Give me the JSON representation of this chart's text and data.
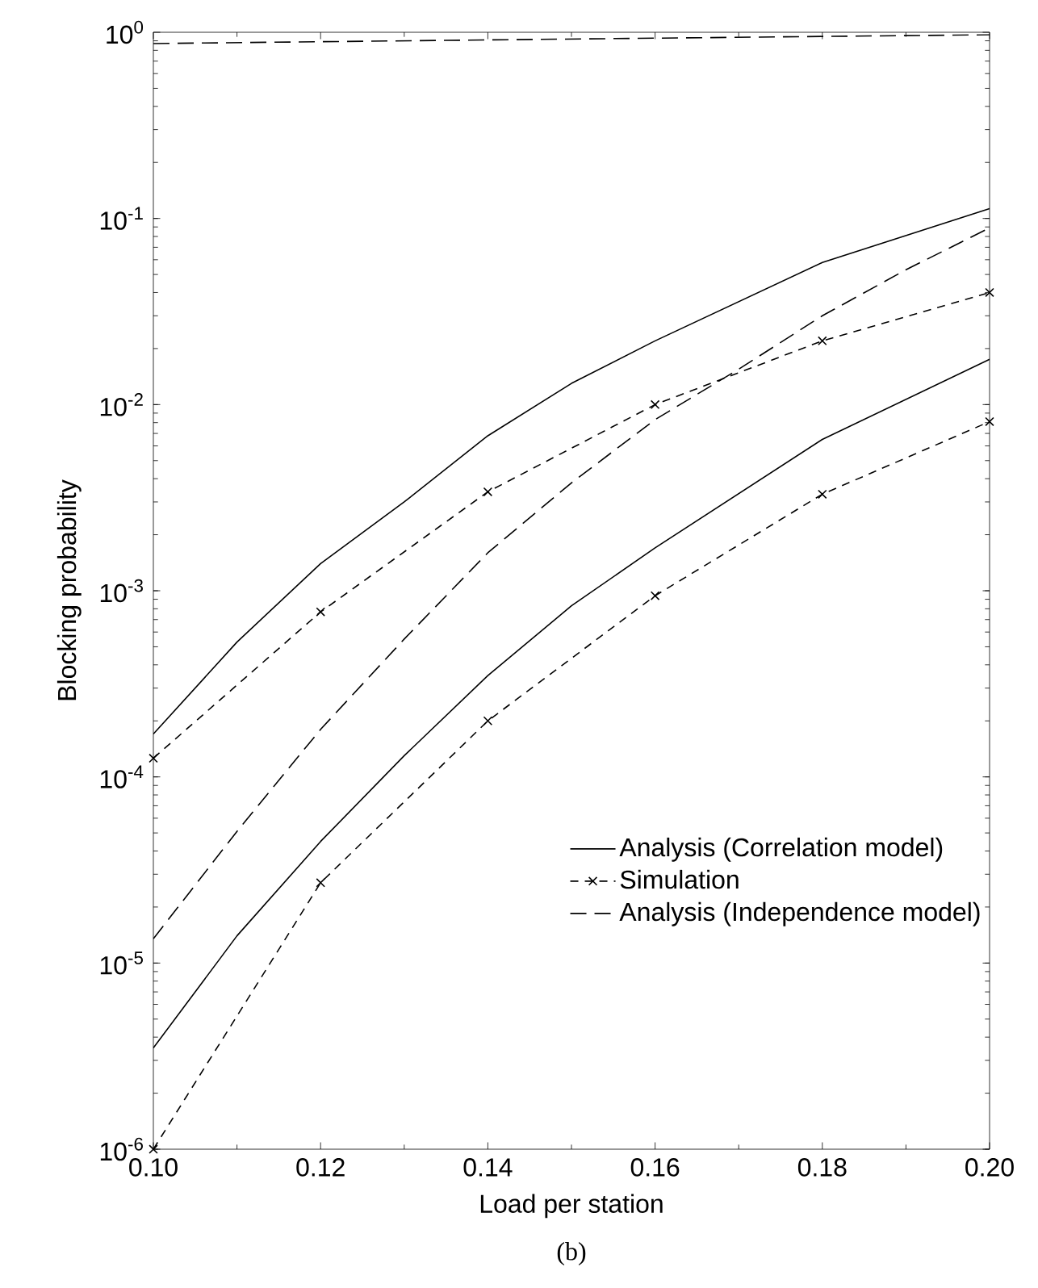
{
  "chart_data": {
    "type": "line",
    "xlabel": "Load per station",
    "ylabel": "Blocking probability",
    "xlim": [
      0.1,
      0.2
    ],
    "ylim": [
      1e-06,
      1
    ],
    "log": "y",
    "xticks": [
      {
        "value": 0.1,
        "label": "0.10"
      },
      0.12,
      0.14,
      0.16,
      0.18,
      {
        "value": 0.2,
        "label": "0.20"
      }
    ],
    "yticks": [
      {
        "value": 1e-06,
        "label": "10$^{-6}$"
      },
      {
        "value": 1e-05,
        "label": "10$^{-5}$"
      },
      {
        "value": 0.0001,
        "label": "10$^{-4}$"
      },
      {
        "value": 0.001,
        "label": "10$^{-3}$"
      },
      {
        "value": 0.01,
        "label": "10$^{-2}$"
      },
      {
        "value": 0.1,
        "label": "10$^{-1}$"
      },
      {
        "value": 1,
        "label": "10$^{0}$"
      }
    ],
    "grid": false,
    "legend": "right",
    "series": [
      {
        "name": "Analysis (Correlation model)",
        "color": "#000000",
        "line_style": "solid",
        "marker": "none",
        "x": [
          0.1,
          0.11,
          0.12,
          0.13,
          0.14,
          0.15,
          0.16,
          0.18,
          0.2
        ],
        "values": [
          0.00017,
          0.00053,
          0.0014,
          0.003,
          0.0068,
          0.013,
          0.022,
          0.058,
          0.113
        ]
      },
      {
        "name": "Simulation",
        "color": "#000000",
        "line_style": "dashed",
        "marker": "cross",
        "x": [
          0.1,
          0.12,
          0.14,
          0.16,
          0.18,
          0.2
        ],
        "values": [
          0.000126,
          0.00077,
          0.0034,
          0.01,
          0.022,
          0.04
        ]
      },
      {
        "name": "Analysis (Independence model)",
        "color": "#000000",
        "line_style": "dashed",
        "marker": "none",
        "x": [
          0.1,
          0.11,
          0.12,
          0.13,
          0.14,
          0.15,
          0.16,
          0.17,
          0.18,
          0.19,
          0.2
        ],
        "values": [
          1.35e-05,
          5.1e-05,
          0.00018,
          0.00055,
          0.0016,
          0.0038,
          0.0083,
          0.0155,
          0.03,
          0.053,
          0.089
        ]
      },
      {
        "color": "#000000",
        "line_style": "solid",
        "marker": "none",
        "x": [
          0.1,
          0.11,
          0.12,
          0.13,
          0.14,
          0.15,
          0.16,
          0.18,
          0.2
        ],
        "values": [
          3.5e-06,
          1.4e-05,
          4.5e-05,
          0.00013,
          0.00035,
          0.00083,
          0.0017,
          0.0065,
          0.0175
        ]
      },
      {
        "color": "#000000",
        "line_style": "dashed",
        "marker": "cross",
        "x": [
          0.1,
          0.12,
          0.14,
          0.16,
          0.18,
          0.2
        ],
        "values": [
          1e-06,
          2.7e-05,
          0.0002,
          0.00094,
          0.0033,
          0.0081
        ]
      },
      {
        "color": "#000000",
        "line_style": "dashed",
        "marker": "none",
        "x": [
          0.1,
          0.12,
          0.14,
          0.16,
          0.18,
          0.2
        ],
        "values": [
          0.87,
          0.89,
          0.91,
          0.93,
          0.95,
          0.97
        ]
      }
    ],
    "annotations": [
      "(b)"
    ]
  }
}
